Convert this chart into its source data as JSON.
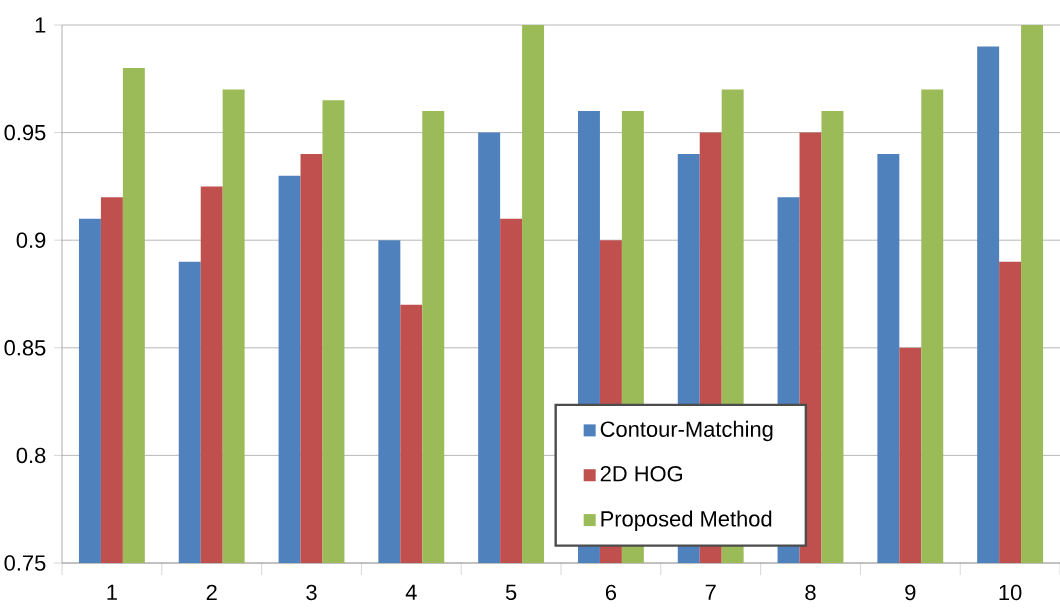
{
  "chart_data": {
    "type": "bar",
    "categories": [
      "1",
      "2",
      "3",
      "4",
      "5",
      "6",
      "7",
      "8",
      "9",
      "10"
    ],
    "series": [
      {
        "name": "Contour-Matching",
        "color": "#4f81bd",
        "values": [
          0.91,
          0.89,
          0.93,
          0.9,
          0.95,
          0.96,
          0.94,
          0.92,
          0.94,
          0.99
        ]
      },
      {
        "name": "2D HOG",
        "color": "#c0504d",
        "values": [
          0.92,
          0.925,
          0.94,
          0.87,
          0.91,
          0.9,
          0.95,
          0.95,
          0.85,
          0.89
        ]
      },
      {
        "name": "Proposed Method",
        "color": "#9bbb59",
        "values": [
          0.98,
          0.97,
          0.965,
          0.96,
          1.0,
          0.96,
          0.97,
          0.96,
          0.97,
          1.0
        ]
      }
    ],
    "ylim": [
      0.75,
      1
    ],
    "yticks": [
      0.75,
      0.8,
      0.85,
      0.9,
      0.95,
      1
    ],
    "grid": "y",
    "legend": "bottom"
  }
}
